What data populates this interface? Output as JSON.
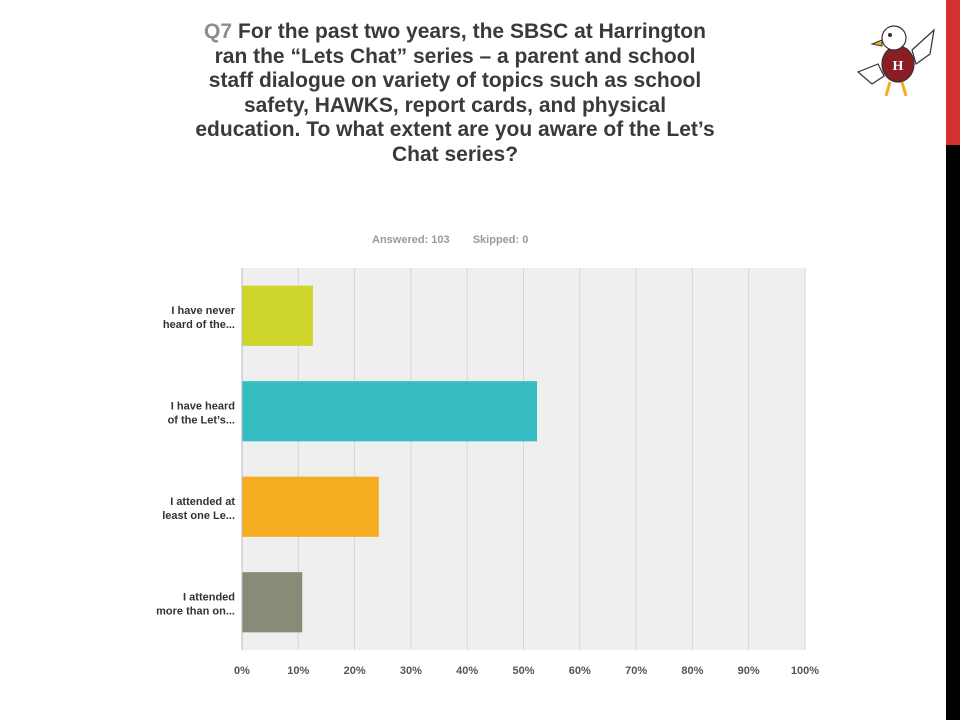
{
  "question": {
    "number": "Q7",
    "text": "For the past two years, the SBSC at Harrington ran the “Lets Chat” series – a parent and school staff dialogue on variety of topics such as school safety, HAWKS, report cards, and physical education. To what extent are you aware of the Let’s Chat series?"
  },
  "meta": {
    "answered": "Answered: 103",
    "skipped": "Skipped: 0"
  },
  "colors": {
    "side_red": "#d63031",
    "side_black": "#000000"
  },
  "chart_data": {
    "type": "bar",
    "orientation": "horizontal",
    "categories": [
      [
        "I have never",
        "heard of the..."
      ],
      [
        "I have heard",
        "of the Let’s..."
      ],
      [
        "I attended at",
        "least one Le..."
      ],
      [
        "I attended",
        "more than on..."
      ]
    ],
    "values": [
      12.6,
      52.4,
      24.3,
      10.7
    ],
    "colors": [
      "#cdd52b",
      "#35bdc1",
      "#f4ad20",
      "#8a8a78"
    ],
    "xlim": [
      0,
      100
    ],
    "ticks": [
      0,
      10,
      20,
      30,
      40,
      50,
      60,
      70,
      80,
      90,
      100
    ],
    "tick_labels": [
      "0%",
      "10%",
      "20%",
      "30%",
      "40%",
      "50%",
      "60%",
      "70%",
      "80%",
      "90%",
      "100%"
    ],
    "grid": true
  }
}
